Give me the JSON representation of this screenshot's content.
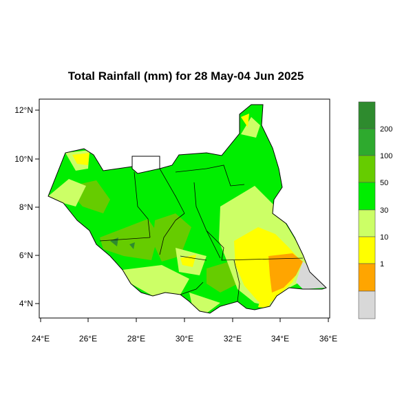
{
  "title": "Total Rainfall (mm) for 28 May-04 Jun 2025",
  "axes": {
    "y_ticks": [
      "12°N",
      "10°N",
      "8°N",
      "6°N",
      "4°N"
    ],
    "x_ticks": [
      "24°E",
      "26°E",
      "28°E",
      "30°E",
      "32°E",
      "34°E",
      "36°E"
    ]
  },
  "legend": {
    "labels": [
      "200",
      "100",
      "50",
      "30",
      "10",
      "1"
    ],
    "colors": [
      "#2e8b2e",
      "#2eaa2e",
      "#66cc00",
      "#00ee00",
      "#ccff66",
      "#ffff00",
      "#ffa500",
      "#d8d8d8"
    ]
  }
}
